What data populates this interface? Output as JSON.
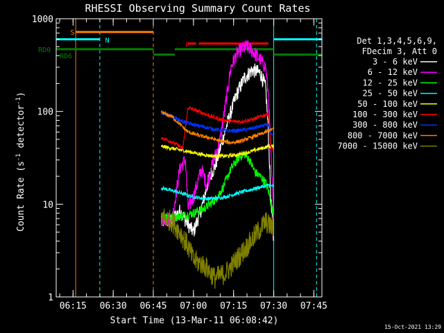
{
  "chart_data": {
    "type": "line",
    "title": "RHESSI Observing Summary Count Rates",
    "xlabel": "Start Time (13-Mar-11 06:08:42)",
    "ylabel": "Count Rate (s⁻¹ detector⁻¹)",
    "ylabel_main": "Count Rate (s",
    "ylabel_sup1": "-1",
    "ylabel_mid": " detector",
    "ylabel_sup2": "-1",
    "ylabel_end": ")",
    "y_scale": "log",
    "ylim": [
      1,
      1000
    ],
    "xlim": [
      "06:08:42",
      "07:48:00"
    ],
    "x_ticks": [
      {
        "t": "06:15",
        "label": "06:15"
      },
      {
        "t": "06:30",
        "label": "06:30"
      },
      {
        "t": "06:45",
        "label": "06:45"
      },
      {
        "t": "07:00",
        "label": "07:00"
      },
      {
        "t": "07:15",
        "label": "07:15"
      },
      {
        "t": "07:30",
        "label": "07:30"
      },
      {
        "t": "07:45",
        "label": "07:45"
      }
    ],
    "y_ticks": [
      {
        "v": 1,
        "label": "1"
      },
      {
        "v": 10,
        "label": "10"
      },
      {
        "v": 100,
        "label": "100"
      },
      {
        "v": 1000,
        "label": "1000"
      }
    ],
    "legend": {
      "header1": "Det 1,3,4,5,6,9,",
      "header2": "FDecim 3, Att 0",
      "placement": "right"
    },
    "series": [
      {
        "name": "3 - 6 keV",
        "color": "#ffffff",
        "noise": 0.08,
        "points": [
          [
            "06:48",
            "6.5"
          ],
          [
            "06:52",
            "6.8"
          ],
          [
            "06:55",
            "8.5"
          ],
          [
            "06:58",
            "6.0"
          ],
          [
            "07:00",
            "5.0"
          ],
          [
            "07:03",
            "9"
          ],
          [
            "07:06",
            "20"
          ],
          [
            "07:08",
            "25"
          ],
          [
            "07:10",
            "40"
          ],
          [
            "07:13",
            "80"
          ],
          [
            "07:16",
            "150"
          ],
          [
            "07:19",
            "230"
          ],
          [
            "07:22",
            "280"
          ],
          [
            "07:25",
            "260"
          ],
          [
            "07:27",
            "180"
          ],
          [
            "07:28",
            "60"
          ],
          [
            "07:29",
            "10"
          ],
          [
            "07:30",
            "4"
          ]
        ]
      },
      {
        "name": "6 - 12 keV",
        "color": "#ff00ff",
        "noise": 0.08,
        "points": [
          [
            "06:48",
            "7"
          ],
          [
            "06:52",
            "6.8"
          ],
          [
            "06:55",
            "25"
          ],
          [
            "06:57",
            "30"
          ],
          [
            "06:58",
            "9"
          ],
          [
            "07:00",
            "12"
          ],
          [
            "07:03",
            "24"
          ],
          [
            "07:05",
            "16"
          ],
          [
            "07:07",
            "26"
          ],
          [
            "07:10",
            "50"
          ],
          [
            "07:12",
            "120"
          ],
          [
            "07:14",
            "300"
          ],
          [
            "07:16",
            "410"
          ],
          [
            "07:18",
            "470"
          ],
          [
            "07:20",
            "500"
          ],
          [
            "07:22",
            "450"
          ],
          [
            "07:25",
            "360"
          ],
          [
            "07:27",
            "300"
          ],
          [
            "07:28",
            "150"
          ],
          [
            "07:29",
            "30"
          ],
          [
            "07:30",
            "7"
          ]
        ]
      },
      {
        "name": "12 - 25 keV",
        "color": "#00ff00",
        "noise": 0.05,
        "points": [
          [
            "06:48",
            "8"
          ],
          [
            "06:52",
            "7.2"
          ],
          [
            "06:56",
            "7.5"
          ],
          [
            "07:00",
            "8"
          ],
          [
            "07:04",
            "9"
          ],
          [
            "07:08",
            "11"
          ],
          [
            "07:11",
            "15"
          ],
          [
            "07:14",
            "24"
          ],
          [
            "07:17",
            "32"
          ],
          [
            "07:19",
            "35"
          ],
          [
            "07:21",
            "30"
          ],
          [
            "07:23",
            "22"
          ],
          [
            "07:25",
            "20"
          ],
          [
            "07:27",
            "17"
          ],
          [
            "07:28",
            "14"
          ],
          [
            "07:30",
            "7.5"
          ]
        ]
      },
      {
        "name": "25 - 50 keV",
        "color": "#00ffff",
        "noise": 0.02,
        "points": [
          [
            "06:48",
            "15"
          ],
          [
            "06:52",
            "14"
          ],
          [
            "06:56",
            "13"
          ],
          [
            "07:00",
            "12"
          ],
          [
            "07:04",
            "11.5"
          ],
          [
            "07:08",
            "11.5"
          ],
          [
            "07:12",
            "12"
          ],
          [
            "07:16",
            "13"
          ],
          [
            "07:20",
            "14"
          ],
          [
            "07:24",
            "15"
          ],
          [
            "07:28",
            "16"
          ],
          [
            "07:30",
            "15.5"
          ]
        ]
      },
      {
        "name": "50 - 100 keV",
        "color": "#ffff00",
        "noise": 0.02,
        "points": [
          [
            "06:48",
            "42"
          ],
          [
            "06:52",
            "40"
          ],
          [
            "06:56",
            "38"
          ],
          [
            "07:00",
            "36"
          ],
          [
            "07:04",
            "34"
          ],
          [
            "07:08",
            "33"
          ],
          [
            "07:12",
            "33"
          ],
          [
            "07:16",
            "34"
          ],
          [
            "07:20",
            "36"
          ],
          [
            "07:24",
            "39"
          ],
          [
            "07:28",
            "42"
          ],
          [
            "07:30",
            "42"
          ]
        ]
      },
      {
        "name": "100 - 300 keV",
        "color": "#ff0000",
        "noise": 0.02,
        "points": [
          [
            "06:48",
            "52"
          ],
          [
            "06:52",
            "47"
          ],
          [
            "06:56",
            "40"
          ],
          [
            "06:58",
            "110"
          ],
          [
            "07:02",
            "100"
          ],
          [
            "07:06",
            "90"
          ],
          [
            "07:10",
            "82"
          ],
          [
            "07:14",
            "78"
          ],
          [
            "07:18",
            "78"
          ],
          [
            "07:22",
            "82"
          ],
          [
            "07:26",
            "90"
          ],
          [
            "07:28",
            "95"
          ],
          [
            "07:29",
            "40"
          ],
          [
            "07:30",
            "38"
          ]
        ]
      },
      {
        "name": "300 - 800 keV",
        "color": "#0033ff",
        "noise": 0.02,
        "points": [
          [
            "06:48",
            "96"
          ],
          [
            "06:52",
            "88"
          ],
          [
            "06:56",
            "78"
          ],
          [
            "07:00",
            "72"
          ],
          [
            "07:04",
            "68"
          ],
          [
            "07:08",
            "64"
          ],
          [
            "07:12",
            "62"
          ],
          [
            "07:16",
            "62"
          ],
          [
            "07:20",
            "64"
          ],
          [
            "07:24",
            "68"
          ],
          [
            "07:28",
            "72"
          ],
          [
            "07:29",
            "55"
          ],
          [
            "07:30",
            "55"
          ]
        ]
      },
      {
        "name": "800 - 7000 keV",
        "color": "#ff8000",
        "noise": 0.02,
        "points": [
          [
            "06:48",
            "98"
          ],
          [
            "06:52",
            "88"
          ],
          [
            "06:56",
            "68"
          ],
          [
            "06:58",
            "60"
          ],
          [
            "07:02",
            "55"
          ],
          [
            "07:06",
            "52"
          ],
          [
            "07:10",
            "48"
          ],
          [
            "07:14",
            "46"
          ],
          [
            "07:18",
            "48"
          ],
          [
            "07:22",
            "53"
          ],
          [
            "07:26",
            "58"
          ],
          [
            "07:28",
            "62"
          ],
          [
            "07:30",
            "65"
          ]
        ]
      },
      {
        "name": "7000 - 15000 keV",
        "color": "#808000",
        "noise": 0.12,
        "points": [
          [
            "06:48",
            "7.5"
          ],
          [
            "06:52",
            "6.5"
          ],
          [
            "06:55",
            "5"
          ],
          [
            "06:58",
            "3.5"
          ],
          [
            "07:00",
            "2.5"
          ],
          [
            "07:04",
            "2.2"
          ],
          [
            "07:08",
            "1.6"
          ],
          [
            "07:12",
            "1.8"
          ],
          [
            "07:16",
            "2.5"
          ],
          [
            "07:20",
            "3.5"
          ],
          [
            "07:24",
            "5"
          ],
          [
            "07:27",
            "6.5"
          ],
          [
            "07:28",
            "6"
          ],
          [
            "07:30",
            "5.5"
          ]
        ]
      }
    ],
    "flags": [
      {
        "label": "S",
        "color": "#ff8000",
        "start": "06:16",
        "end": "06:45",
        "label_pos": "06:14",
        "value": 720
      },
      {
        "label": "N",
        "color": "#00ffff",
        "start": "06:08:42",
        "end": "06:25",
        "label_pos": "06:27",
        "value": 590
      },
      {
        "label": "RD0",
        "color": "#008000",
        "start": "06:08:42",
        "end": "07:30",
        "label_pos": "06:02",
        "value": 470
      },
      {
        "label": "RD6",
        "color": "#008000",
        "start": "06:10",
        "end": "06:14",
        "label_pos": "06:10",
        "value": 400
      },
      {
        "label": "F",
        "color": "#ff0000",
        "start": "06:58",
        "end": "07:22",
        "label_pos": "06:57",
        "value": 530
      }
    ],
    "flag_segments": [
      {
        "color": "#ff8000",
        "start": "06:16",
        "end": "06:45",
        "value": 720
      },
      {
        "color": "#00ffff",
        "start": "06:08:42",
        "end": "06:25",
        "value": 600
      },
      {
        "color": "#00ffff",
        "start": "07:30",
        "end": "07:48",
        "value": 600
      },
      {
        "color": "#008000",
        "start": "06:08:42",
        "end": "06:45",
        "value": 470
      },
      {
        "color": "#008000",
        "start": "06:45",
        "end": "06:53",
        "value": 410
      },
      {
        "color": "#008000",
        "start": "06:53",
        "end": "07:30",
        "value": 470
      },
      {
        "color": "#008000",
        "start": "07:30",
        "end": "07:48",
        "value": 410
      },
      {
        "color": "#ff0000",
        "start": "06:58",
        "end": "07:01",
        "value": 540
      },
      {
        "color": "#ff0000",
        "start": "07:02",
        "end": "07:28",
        "value": 540
      }
    ],
    "vlines": [
      {
        "t": "06:08:42",
        "color": "#00ffff",
        "dash": false
      },
      {
        "t": "06:16",
        "color": "#ff8000",
        "dash": false
      },
      {
        "t": "06:25",
        "color": "#00ffff",
        "dash": true
      },
      {
        "t": "06:45",
        "color": "#ff8000",
        "dash": true
      },
      {
        "t": "07:30",
        "color": "#00ffff",
        "dash": false
      },
      {
        "t": "07:46",
        "color": "#00ffff",
        "dash": true
      }
    ],
    "timestamp": "15-Oct-2021 13:29"
  }
}
